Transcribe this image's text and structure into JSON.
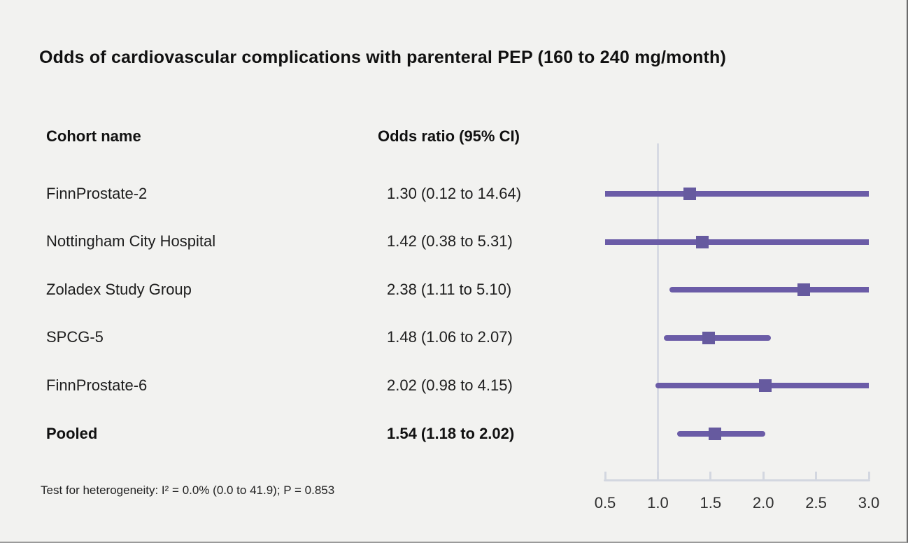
{
  "title": "Odds of cardiovascular complications with parenteral PEP (160 to 240 mg/month)",
  "columns": {
    "cohort": "Cohort name",
    "odds": "Odds ratio (95% CI)"
  },
  "footnote": "Test for heterogeneity: I² = 0.0% (0.0 to 41.9); P = 0.853",
  "chart_data": {
    "type": "forest",
    "title": "Odds of cardiovascular complications with parenteral PEP (160 to 240 mg/month)",
    "xlabel": "Odds ratio",
    "axis": {
      "min": 0.5,
      "max": 3.0,
      "reference": 1.0,
      "tick_values": [
        0.5,
        1.0,
        1.5,
        2.0,
        2.5,
        3.0
      ],
      "tick_labels": [
        "0.5",
        "1.0",
        "1.5",
        "2.0",
        "2.5",
        "3.0"
      ]
    },
    "rows": [
      {
        "label": "FinnProstate-2",
        "display": "1.30 (0.12 to 14.64)",
        "or": 1.3,
        "ci_low": 0.12,
        "ci_high": 14.64,
        "pooled": false
      },
      {
        "label": "Nottingham City Hospital",
        "display": "1.42 (0.38 to 5.31)",
        "or": 1.42,
        "ci_low": 0.38,
        "ci_high": 5.31,
        "pooled": false
      },
      {
        "label": "Zoladex Study Group",
        "display": "2.38 (1.11 to 5.10)",
        "or": 2.38,
        "ci_low": 1.11,
        "ci_high": 5.1,
        "pooled": false
      },
      {
        "label": "SPCG-5",
        "display": "1.48 (1.06 to 2.07)",
        "or": 1.48,
        "ci_low": 1.06,
        "ci_high": 2.07,
        "pooled": false
      },
      {
        "label": "FinnProstate-6",
        "display": "2.02 (0.98 to 4.15)",
        "or": 2.02,
        "ci_low": 0.98,
        "ci_high": 4.15,
        "pooled": false
      },
      {
        "label": "Pooled",
        "display": "1.54 (1.18 to 2.02)",
        "or": 1.54,
        "ci_low": 1.18,
        "ci_high": 2.02,
        "pooled": true
      }
    ],
    "colors": {
      "marker": "#665a9f",
      "ci_line": "#6b5ca7",
      "axis": "#d3d7e0",
      "reference_line": "#d7dae3",
      "background": "#f2f2f0",
      "text": "#1a1a1a"
    }
  }
}
